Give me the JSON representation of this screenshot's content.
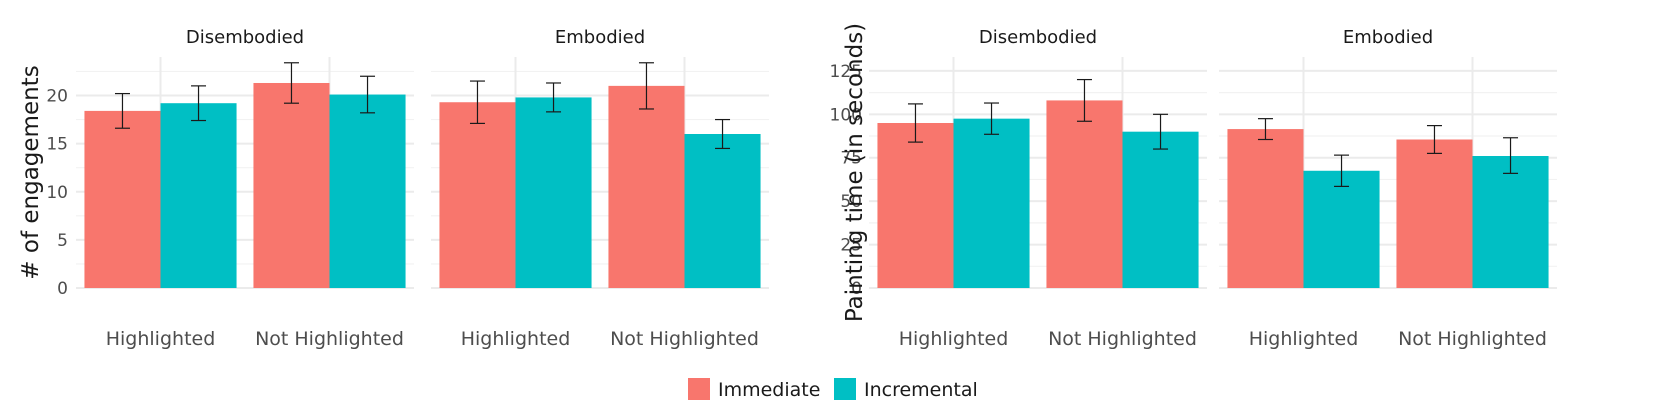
{
  "chart_data": [
    {
      "type": "bar",
      "ylabel": "# of engagements",
      "ylim": [
        0,
        24
      ],
      "yticks": [
        0,
        5,
        10,
        15,
        20
      ],
      "categories": [
        "Highlighted",
        "Not Highlighted"
      ],
      "facets": [
        {
          "title": "Disembodied",
          "series": [
            {
              "name": "Immediate",
              "values": [
                18.4,
                21.3
              ],
              "err_low": [
                16.6,
                19.2
              ],
              "err_high": [
                20.2,
                23.4
              ]
            },
            {
              "name": "Incremental",
              "values": [
                19.2,
                20.1
              ],
              "err_low": [
                17.4,
                18.2
              ],
              "err_high": [
                21.0,
                22.0
              ]
            }
          ]
        },
        {
          "title": "Embodied",
          "series": [
            {
              "name": "Immediate",
              "values": [
                19.3,
                21.0
              ],
              "err_low": [
                17.1,
                18.6
              ],
              "err_high": [
                21.5,
                23.4
              ]
            },
            {
              "name": "Incremental",
              "values": [
                19.8,
                16.0
              ],
              "err_low": [
                18.3,
                14.5
              ],
              "err_high": [
                21.3,
                17.5
              ]
            }
          ]
        }
      ]
    },
    {
      "type": "bar",
      "ylabel": "Painting time (in seconds)",
      "ylim": [
        0,
        133
      ],
      "yticks": [
        0,
        25,
        50,
        75,
        100,
        125
      ],
      "categories": [
        "Highlighted",
        "Not Highlighted"
      ],
      "facets": [
        {
          "title": "Disembodied",
          "series": [
            {
              "name": "Immediate",
              "values": [
                95,
                108
              ],
              "err_low": [
                84,
                96
              ],
              "err_high": [
                106,
                120
              ]
            },
            {
              "name": "Incremental",
              "values": [
                97.5,
                90
              ],
              "err_low": [
                88.5,
                80
              ],
              "err_high": [
                106.5,
                100
              ]
            }
          ]
        },
        {
          "title": "Embodied",
          "series": [
            {
              "name": "Immediate",
              "values": [
                91.5,
                85.5
              ],
              "err_low": [
                85.5,
                77.5
              ],
              "err_high": [
                97.5,
                93.5
              ]
            },
            {
              "name": "Incremental",
              "values": [
                67.5,
                76
              ],
              "err_low": [
                58.5,
                66
              ],
              "err_high": [
                76.5,
                86.5
              ]
            }
          ]
        }
      ]
    }
  ],
  "legend": [
    {
      "name": "Immediate",
      "color": "#F8766D"
    },
    {
      "name": "Incremental",
      "color": "#00BFC4"
    }
  ]
}
